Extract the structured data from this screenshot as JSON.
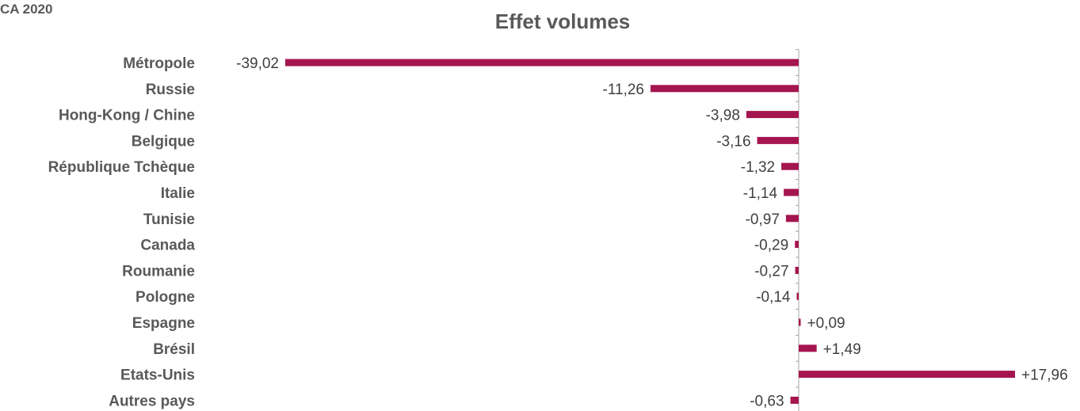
{
  "header": {
    "corner_label": "CA 2020"
  },
  "chart_data": {
    "type": "bar",
    "orientation": "horizontal",
    "title": "Effet volumes",
    "categories": [
      "Métropole",
      "Russie",
      "Hong-Kong / Chine",
      "Belgique",
      "République Tchèque",
      "Italie",
      "Tunisie",
      "Canada",
      "Roumanie",
      "Pologne",
      "Espagne",
      "Brésil",
      "Etats-Unis",
      "Autres pays"
    ],
    "values": [
      -39.02,
      -11.26,
      -3.98,
      -3.16,
      -1.32,
      -1.14,
      -0.97,
      -0.29,
      -0.27,
      -0.14,
      0.09,
      1.49,
      17.96,
      -0.63
    ],
    "data_labels": [
      "-39,02",
      "-11,26",
      "-3,98",
      "-3,16",
      "-1,32",
      "-1,14",
      "-0,97",
      "-0,29",
      "-0,27",
      "-0,14",
      "+0,09",
      "+1,49",
      "+17,96",
      "-0,63"
    ],
    "xlim": [
      -39.02,
      17.96
    ],
    "grid": false,
    "legend": "none",
    "bar_color": "#a5154f",
    "axis_color": "#a6a6a6"
  }
}
